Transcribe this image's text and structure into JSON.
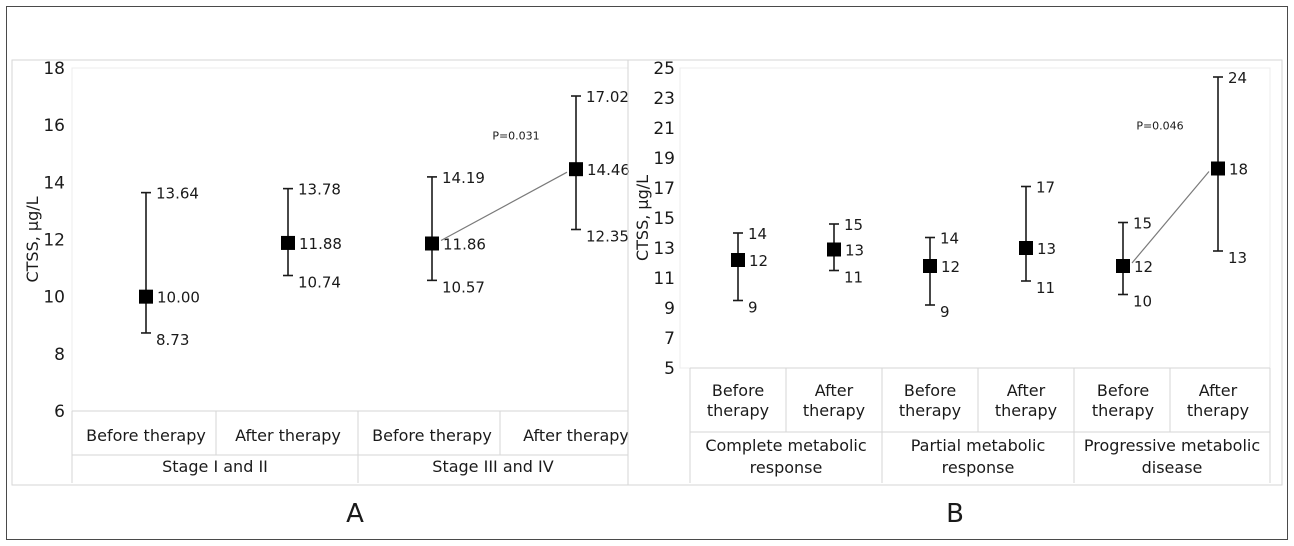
{
  "chart_data": [
    {
      "type": "scatter",
      "panel_label": "A",
      "ylabel": "CTSS, μg/L",
      "ylim": [
        6,
        18
      ],
      "yticks": [
        6,
        8,
        10,
        12,
        14,
        16,
        18
      ],
      "grid": false,
      "categories": [
        "Before therapy",
        "After therapy",
        "Before therapy",
        "After therapy"
      ],
      "groups": [
        "Stage I and II",
        "Stage III and IV"
      ],
      "points": [
        {
          "category": "Before therapy",
          "group": "Stage I and II",
          "value": 10.0,
          "low": 8.73,
          "high": 13.64,
          "value_label": "10.00",
          "low_label": "8.73",
          "high_label": "13.64"
        },
        {
          "category": "After therapy",
          "group": "Stage I and II",
          "value": 11.88,
          "low": 10.74,
          "high": 13.78,
          "value_label": "11.88",
          "low_label": "10.74",
          "high_label": "13.78"
        },
        {
          "category": "Before therapy",
          "group": "Stage III and IV",
          "value": 11.86,
          "low": 10.57,
          "high": 14.19,
          "value_label": "11.86",
          "low_label": "10.57",
          "high_label": "14.19"
        },
        {
          "category": "After therapy",
          "group": "Stage III and IV",
          "value": 14.46,
          "low": 12.35,
          "high": 17.02,
          "value_label": "14.46",
          "low_label": "12.35",
          "high_label": "17.02"
        }
      ],
      "annotations": [
        {
          "text": "P=0.031",
          "connects": [
            2,
            3
          ]
        }
      ]
    },
    {
      "type": "scatter",
      "panel_label": "B",
      "ylabel": "CTSS, μg/L",
      "ylim": [
        5,
        25
      ],
      "yticks": [
        5,
        7,
        9,
        11,
        13,
        15,
        17,
        19,
        21,
        23,
        25
      ],
      "grid": false,
      "categories": [
        "Before therapy",
        "After therapy",
        "Before therapy",
        "After therapy",
        "Before therapy",
        "After therapy"
      ],
      "groups": [
        "Complete metabolic response",
        "Partial metabolic response",
        "Progressive metabolic disease"
      ],
      "points": [
        {
          "category": "Before therapy",
          "group": "Complete metabolic response",
          "value": 12.2,
          "low": 9.5,
          "high": 14.0,
          "value_label": "12",
          "low_label": "9",
          "high_label": "14"
        },
        {
          "category": "After therapy",
          "group": "Complete metabolic response",
          "value": 12.9,
          "low": 11.5,
          "high": 14.6,
          "value_label": "13",
          "low_label": "11",
          "high_label": "15"
        },
        {
          "category": "Before therapy",
          "group": "Partial metabolic response",
          "value": 11.8,
          "low": 9.2,
          "high": 13.7,
          "value_label": "12",
          "low_label": "9",
          "high_label": "14"
        },
        {
          "category": "After therapy",
          "group": "Partial metabolic response",
          "value": 13.0,
          "low": 10.8,
          "high": 17.1,
          "value_label": "13",
          "low_label": "11",
          "high_label": "17"
        },
        {
          "category": "Before therapy",
          "group": "Progressive metabolic disease",
          "value": 11.8,
          "low": 9.9,
          "high": 14.7,
          "value_label": "12",
          "low_label": "10",
          "high_label": "15"
        },
        {
          "category": "After therapy",
          "group": "Progressive metabolic disease",
          "value": 18.3,
          "low": 12.8,
          "high": 24.4,
          "value_label": "18",
          "low_label": "13",
          "high_label": "24"
        }
      ],
      "annotations": [
        {
          "text": "P=0.046",
          "connects": [
            4,
            5
          ]
        }
      ]
    }
  ]
}
